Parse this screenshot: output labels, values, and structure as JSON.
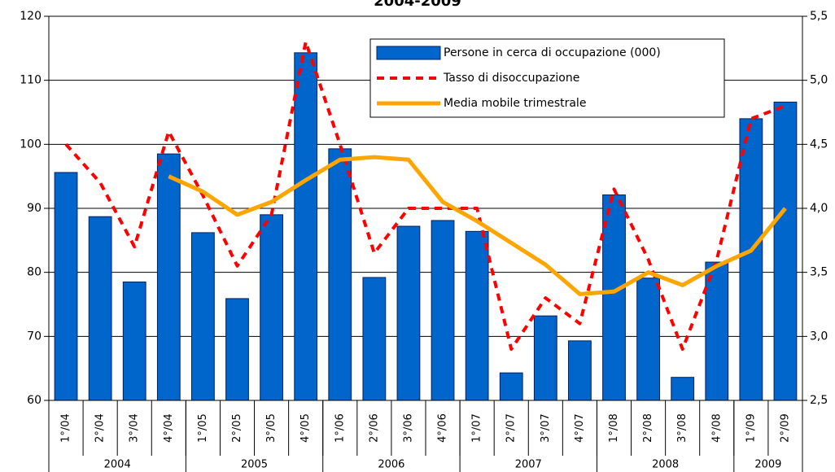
{
  "chart_data": {
    "type": "bar",
    "title": "2004-2009",
    "categories": [
      "1°/04",
      "2°/04",
      "3°/04",
      "4°/04",
      "1°/05",
      "2°/05",
      "3°/05",
      "4°/05",
      "1°/06",
      "2°/06",
      "3°/06",
      "4°/06",
      "1°/07",
      "2°/07",
      "3°/07",
      "4°/07",
      "1°/08",
      "2°/08",
      "3°/08",
      "4°/08",
      "1°/09",
      "2°/09"
    ],
    "year_groups": [
      "2004",
      "2005",
      "2006",
      "2007",
      "2008",
      "2009"
    ],
    "series": [
      {
        "name": "Persone in cerca di occupazione (000)",
        "type": "bar",
        "color": "#0066cc",
        "values": [
          95.6,
          88.7,
          78.5,
          98.5,
          86.2,
          75.9,
          89,
          114.3,
          99.3,
          79.2,
          87.2,
          88.1,
          86.4,
          64.3,
          73.2,
          69.3,
          92.1,
          79.1,
          63.6,
          81.6,
          104,
          106.6
        ]
      },
      {
        "name": "Tasso di disoccupazione",
        "type": "line",
        "dashed": true,
        "axis": "y2",
        "color": "#ff0000",
        "values": [
          4.5,
          4.2,
          3.7,
          4.6,
          4.1,
          3.55,
          3.95,
          5.3,
          4.5,
          3.65,
          4.0,
          4.0,
          4.0,
          2.9,
          3.3,
          3.1,
          4.15,
          3.6,
          2.9,
          3.6,
          4.7,
          4.8
        ]
      },
      {
        "name": "Media mobile trimestrale",
        "type": "line",
        "axis": "y2",
        "color": "#ffa500",
        "values": [
          null,
          null,
          null,
          4.25,
          4.13,
          3.95,
          4.05,
          4.22,
          4.38,
          4.4,
          4.38,
          4.05,
          3.9,
          3.73,
          3.56,
          3.33,
          3.35,
          3.5,
          3.4,
          3.55,
          3.67,
          4.0
        ]
      }
    ],
    "ylim": [
      60,
      120
    ],
    "yticks": [
      60,
      70,
      80,
      90,
      100,
      110,
      120
    ],
    "y2lim": [
      2.5,
      5.5
    ],
    "y2ticks": [
      {
        "value": 2.5,
        "label": "2,5"
      },
      {
        "value": 3,
        "label": "3,0"
      },
      {
        "value": 3.5,
        "label": "3,5"
      },
      {
        "value": 4,
        "label": "4,0"
      },
      {
        "value": 4.5,
        "label": "4,5"
      },
      {
        "value": 5,
        "label": "5,0"
      },
      {
        "value": 5.5,
        "label": "5,5"
      }
    ],
    "grid": true,
    "legend": "top-right"
  }
}
